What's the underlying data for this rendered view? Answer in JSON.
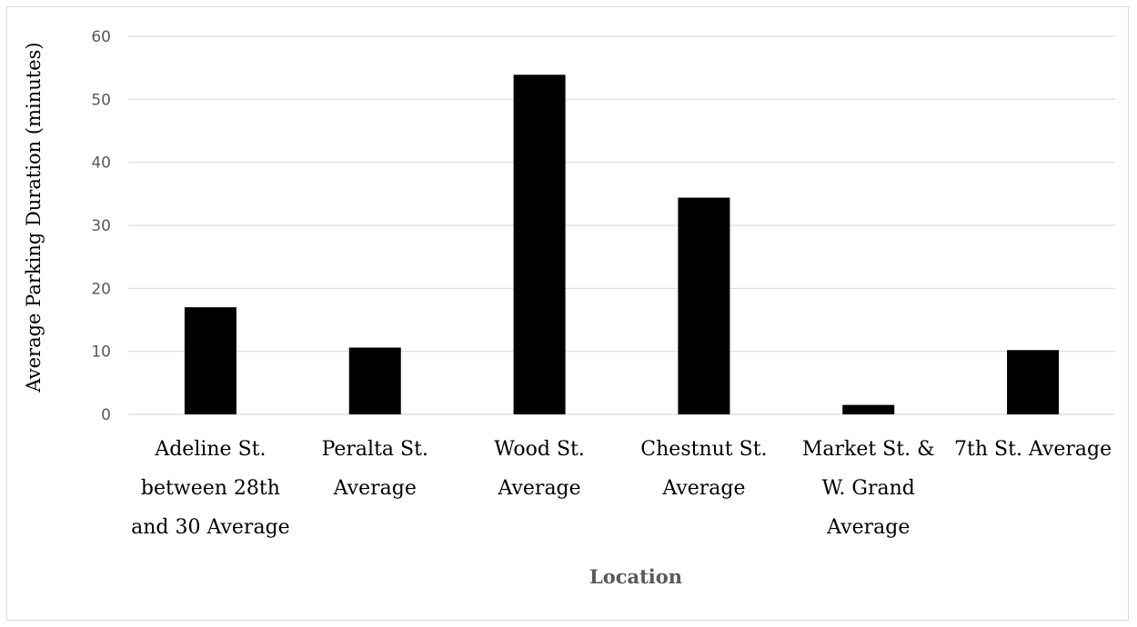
{
  "chart_data": {
    "type": "bar",
    "title": "",
    "xlabel": "Location",
    "ylabel": "Average Parking Duration (minutes)",
    "ylim": [
      0,
      60
    ],
    "yticks": [
      0,
      10,
      20,
      30,
      40,
      50,
      60
    ],
    "grid": true,
    "legend": "none",
    "categories": [
      [
        "Adeline St.",
        "between 28th",
        "and 30 Average"
      ],
      [
        "Peralta St.",
        "Average"
      ],
      [
        "Wood St.",
        "Average"
      ],
      [
        "Chestnut St.",
        "Average"
      ],
      [
        "Market St. &",
        "W. Grand",
        "Average"
      ],
      [
        "7th St. Average"
      ]
    ],
    "values": [
      17,
      10.6,
      53.9,
      34.4,
      1.5,
      10.2
    ],
    "colors": {
      "bar": "#000000",
      "grid": "#d9d9d9",
      "tick_text": "#595959"
    }
  }
}
